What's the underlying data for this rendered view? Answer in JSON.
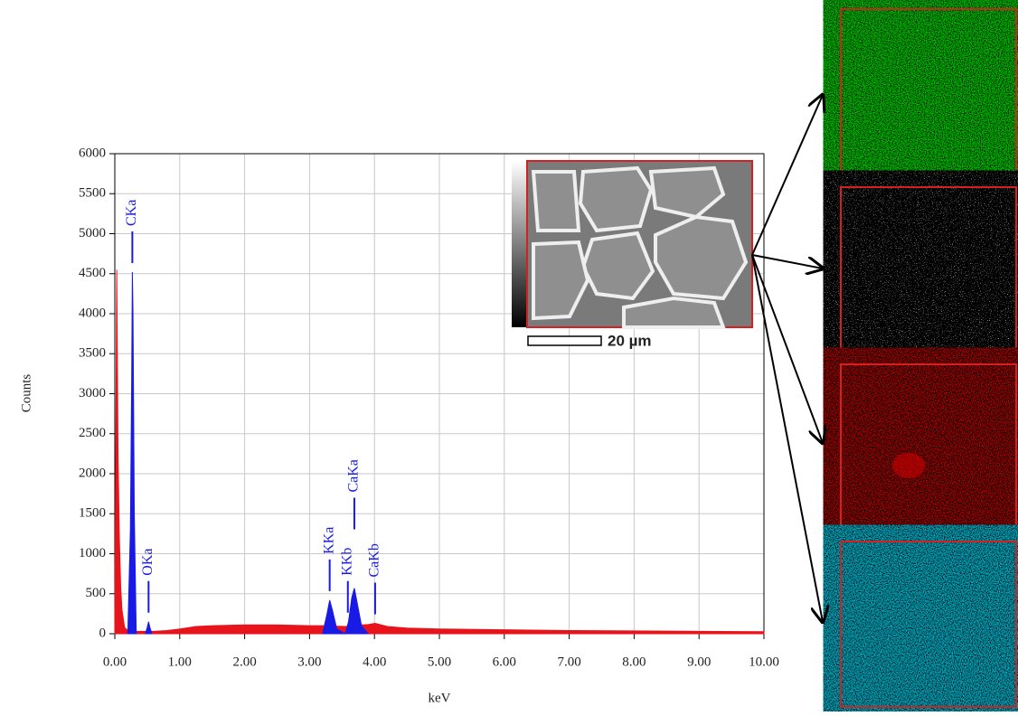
{
  "chart_data": {
    "type": "area",
    "xlabel": "keV",
    "ylabel": "Counts",
    "xlim": [
      0,
      10
    ],
    "ylim": [
      0,
      6000
    ],
    "xticks": [
      {
        "value": 0,
        "label": "0.00"
      },
      {
        "value": 1,
        "label": "1.00"
      },
      {
        "value": 2,
        "label": "2.00"
      },
      {
        "value": 3,
        "label": "3.00"
      },
      {
        "value": 4,
        "label": "4.00"
      },
      {
        "value": 5,
        "label": "5.00"
      },
      {
        "value": 6,
        "label": "6.00"
      },
      {
        "value": 7,
        "label": "7.00"
      },
      {
        "value": 8,
        "label": "8.00"
      },
      {
        "value": 9,
        "label": "9.00"
      },
      {
        "value": 10,
        "label": "10.00"
      }
    ],
    "yticks": [
      0,
      500,
      1000,
      1500,
      2000,
      2500,
      3000,
      3500,
      4000,
      4500,
      5000,
      5500,
      6000
    ],
    "grid": true,
    "x": [
      0,
      0.03,
      0.05,
      0.07,
      0.09,
      0.11,
      0.15,
      0.2,
      0.24,
      0.26,
      0.27,
      0.28,
      0.3,
      0.33,
      0.4,
      0.47,
      0.5,
      0.52,
      0.54,
      0.57,
      0.6,
      0.8,
      1.0,
      1.25,
      1.5,
      2.0,
      2.5,
      3.0,
      3.2,
      3.27,
      3.31,
      3.35,
      3.42,
      3.55,
      3.6,
      3.65,
      3.69,
      3.73,
      3.8,
      3.9,
      4.01,
      4.2,
      4.5,
      5.0,
      6.0,
      7.0,
      8.0,
      9.0,
      10.0
    ],
    "series": [
      {
        "color": "#e8141b",
        "values": [
          0,
          4550,
          2200,
          1200,
          600,
          300,
          80,
          40,
          35,
          35,
          35,
          35,
          30,
          30,
          30,
          30,
          30,
          30,
          30,
          30,
          30,
          40,
          60,
          90,
          100,
          110,
          110,
          100,
          100,
          100,
          100,
          100,
          95,
          90,
          95,
          100,
          100,
          105,
          110,
          115,
          130,
          90,
          70,
          60,
          50,
          40,
          35,
          30,
          25
        ]
      },
      {
        "color": "#1a1ae6",
        "values": [
          null,
          null,
          null,
          null,
          null,
          null,
          null,
          0,
          1300,
          3200,
          4520,
          4000,
          1500,
          0,
          null,
          0,
          80,
          150,
          80,
          0,
          null,
          null,
          null,
          null,
          null,
          null,
          null,
          null,
          0,
          250,
          420,
          300,
          60,
          0,
          150,
          450,
          570,
          400,
          100,
          0,
          null,
          null,
          null,
          null,
          null,
          null,
          null,
          null,
          null
        ]
      }
    ],
    "peak_labels": [
      {
        "label": "CKa",
        "x": 0.27
      },
      {
        "label": "OKa",
        "x": 0.52
      },
      {
        "label": "KKa",
        "x": 3.31
      },
      {
        "label": "KKb",
        "x": 3.59
      },
      {
        "label": "CaKa",
        "x": 3.69
      },
      {
        "label": "CaKb",
        "x": 4.01
      }
    ]
  },
  "inset": {
    "scale_bar": "20 µm"
  }
}
